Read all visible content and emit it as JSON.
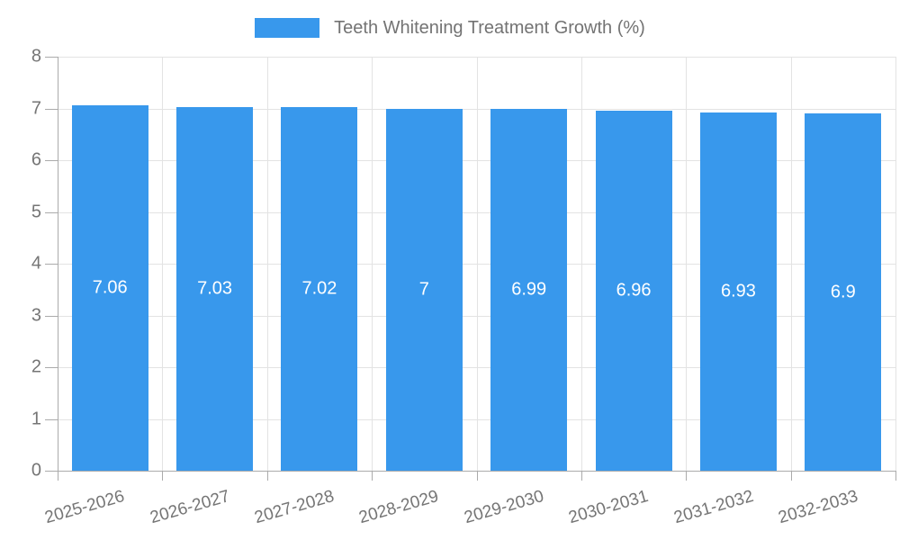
{
  "legend": {
    "label": "Teeth Whitening Treatment Growth (%)"
  },
  "colors": {
    "bar": "#3898EC",
    "grid": "#E3E3E3",
    "axis": "#ABABAB",
    "tick_text": "#757575",
    "value_text": "#FFFFFF"
  },
  "chart_data": {
    "type": "bar",
    "title": "Teeth Whitening Treatment Growth (%)",
    "categories": [
      "2025-2026",
      "2026-2027",
      "2027-2028",
      "2028-2029",
      "2029-2030",
      "2030-2031",
      "2031-2032",
      "2032-2033"
    ],
    "values": [
      7.06,
      7.03,
      7.02,
      7,
      6.99,
      6.96,
      6.93,
      6.9
    ],
    "value_labels": [
      "7.06",
      "7.03",
      "7.02",
      "7",
      "6.99",
      "6.96",
      "6.93",
      "6.9"
    ],
    "xlabel": "",
    "ylabel": "",
    "ylim": [
      0,
      8
    ],
    "yticks": [
      0,
      1,
      2,
      3,
      4,
      5,
      6,
      7,
      8
    ],
    "grid": true,
    "legend_position": "top"
  }
}
